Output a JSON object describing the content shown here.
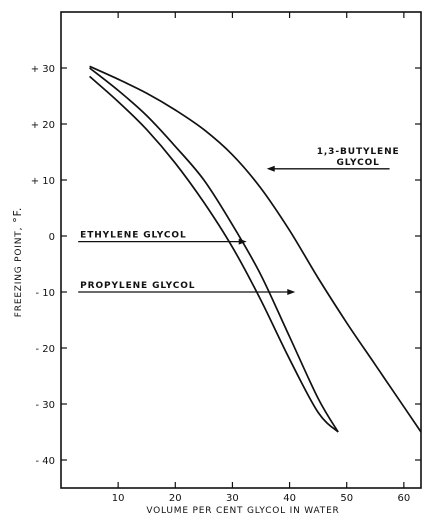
{
  "chart_data": {
    "type": "line",
    "xlabel": "VOLUME PER CENT GLYCOL IN WATER",
    "ylabel_main": "FREEZING POINT,",
    "ylabel_unit": "°F.",
    "xlim": [
      0,
      63
    ],
    "ylim": [
      -45,
      40
    ],
    "x_ticks": [
      10,
      20,
      30,
      40,
      50,
      60
    ],
    "x_tick_labels": [
      "10",
      "20",
      "30",
      "40",
      "50",
      "60"
    ],
    "y_ticks": [
      30,
      20,
      10,
      0,
      -10,
      -20,
      -30,
      -40
    ],
    "y_tick_labels": [
      "+ 30",
      "+ 20",
      "+ 10",
      "0",
      "- 10",
      "- 20",
      "- 30",
      "- 40"
    ],
    "grid": false,
    "series": [
      {
        "name": "ETHYLENE GLYCOL",
        "points": [
          [
            5,
            30
          ],
          [
            10,
            26
          ],
          [
            15,
            21.5
          ],
          [
            20,
            16
          ],
          [
            25,
            10
          ],
          [
            30,
            2
          ],
          [
            35,
            -7
          ],
          [
            40,
            -18
          ],
          [
            45,
            -29
          ],
          [
            48.5,
            -35
          ]
        ]
      },
      {
        "name": "PROPYLENE GLYCOL",
        "points": [
          [
            5,
            28.5
          ],
          [
            10,
            24
          ],
          [
            15,
            19
          ],
          [
            20,
            13
          ],
          [
            25,
            6
          ],
          [
            30,
            -2
          ],
          [
            35,
            -11.5
          ],
          [
            40,
            -22
          ],
          [
            45,
            -31.5
          ],
          [
            48.5,
            -35
          ]
        ]
      },
      {
        "name": "1,3-BUTYLENE GLYCOL",
        "points": [
          [
            5,
            30.3
          ],
          [
            10,
            28
          ],
          [
            15,
            25.5
          ],
          [
            20,
            22.5
          ],
          [
            25,
            19
          ],
          [
            30,
            14.5
          ],
          [
            35,
            8.5
          ],
          [
            40,
            1
          ],
          [
            45,
            -7.5
          ],
          [
            50,
            -15.5
          ],
          [
            55,
            -23
          ],
          [
            60,
            -30.5
          ],
          [
            63,
            -35
          ]
        ]
      }
    ],
    "annotations": [
      {
        "lines": [
          "1,3-BUTYLENE",
          "GLYCOL"
        ],
        "series": "1,3-BUTYLENE GLYCOL",
        "arrow_from": [
          57.5,
          12
        ],
        "arrow_to": [
          36,
          12
        ]
      },
      {
        "lines": [
          "ETHYLENE GLYCOL"
        ],
        "series": "ETHYLENE GLYCOL",
        "arrow_from": [
          3,
          -1
        ],
        "arrow_to": [
          32.5,
          -1
        ]
      },
      {
        "lines": [
          "PROPYLENE GLYCOL"
        ],
        "series": "PROPYLENE GLYCOL",
        "arrow_from": [
          3,
          -10
        ],
        "arrow_to": [
          41,
          -10
        ]
      }
    ]
  }
}
